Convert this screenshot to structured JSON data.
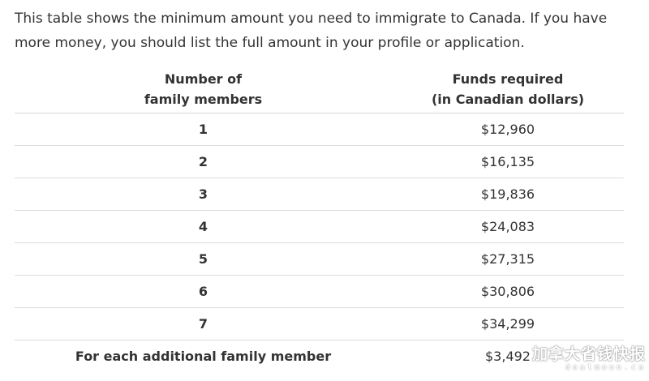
{
  "intro": "This table shows the minimum amount you need to immigrate to Canada. If you have more money, you should list the full amount in your profile or application.",
  "table": {
    "headers": {
      "members_line1": "Number of",
      "members_line2": "family members",
      "funds_line1": "Funds required",
      "funds_line2": "(in Canadian dollars)"
    },
    "rows": [
      {
        "members": "1",
        "funds": "$12,960"
      },
      {
        "members": "2",
        "funds": "$16,135"
      },
      {
        "members": "3",
        "funds": "$19,836"
      },
      {
        "members": "4",
        "funds": "$24,083"
      },
      {
        "members": "5",
        "funds": "$27,315"
      },
      {
        "members": "6",
        "funds": "$30,806"
      },
      {
        "members": "7",
        "funds": "$34,299"
      },
      {
        "members": "For each additional family member",
        "funds": "$3,492"
      }
    ]
  },
  "watermark": {
    "line1": "加拿大省钱快报",
    "line2": "dealmoon.ca"
  }
}
